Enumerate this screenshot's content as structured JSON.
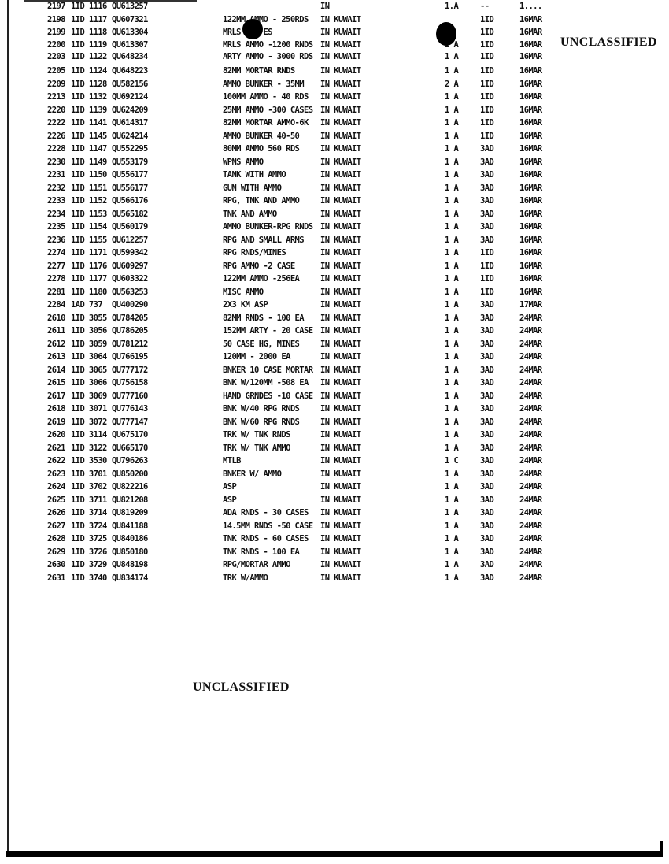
{
  "classification": {
    "top": "UNCLASSIFIED",
    "bottom": "UNCLASSIFIED"
  },
  "rows": [
    {
      "num": "2197",
      "unit": "1ID 1116",
      "grid": "QU613257",
      "desc": "",
      "loc": "IN",
      "qty": "1.A",
      "unit2": "--",
      "date": "1...."
    },
    {
      "num": "2198",
      "unit": "1ID 1117",
      "grid": "QU607321",
      "desc": "122MM AMMO - 250RDS",
      "loc": "IN KUWAIT",
      "qty": "",
      "unit2": "1ID",
      "date": "16MAR"
    },
    {
      "num": "2199",
      "unit": "1ID 1118",
      "grid": "QU613304",
      "desc": "MRLS     ES",
      "loc": "IN KUWAIT",
      "qty": "",
      "unit2": "1ID",
      "date": "16MAR"
    },
    {
      "num": "2200",
      "unit": "1ID 1119",
      "grid": "QU613307",
      "desc": "MRLS AMMO -1200 RNDS",
      "loc": "IN KUWAIT",
      "qty": "1 A",
      "unit2": "1ID",
      "date": "16MAR"
    },
    {
      "num": "2203",
      "unit": "1ID 1122",
      "grid": "QU648234",
      "desc": "ARTY AMMO - 3000 RDS",
      "loc": "IN KUWAIT",
      "qty": "1 A",
      "unit2": "1ID",
      "date": "16MAR"
    },
    {
      "num": "2205",
      "unit": "1ID 1124",
      "grid": "QU648223",
      "desc": "82MM MORTAR RNDS",
      "loc": "IN KUWAIT",
      "qty": "1 A",
      "unit2": "1ID",
      "date": "16MAR"
    },
    {
      "num": "2209",
      "unit": "1ID 1128",
      "grid": "QU582156",
      "desc": "AMMO BUNKER - 35MM",
      "loc": "IN KUWAIT",
      "qty": "2 A",
      "unit2": "1ID",
      "date": "16MAR"
    },
    {
      "num": "2213",
      "unit": "1ID 1132",
      "grid": "QU692124",
      "desc": "100MM AMMO - 40 RDS",
      "loc": "IN KUWAIT",
      "qty": "1 A",
      "unit2": "1ID",
      "date": "16MAR"
    },
    {
      "num": "2220",
      "unit": "1ID 1139",
      "grid": "QU624209",
      "desc": "25MM AMMO -300 CASES",
      "loc": "IN KUWAIT",
      "qty": "1 A",
      "unit2": "1ID",
      "date": "16MAR"
    },
    {
      "num": "2222",
      "unit": "1ID 1141",
      "grid": "QU614317",
      "desc": "82MM MORTAR AMMO-6K",
      "loc": "IN KUWAIT",
      "qty": "1 A",
      "unit2": "1ID",
      "date": "16MAR"
    },
    {
      "num": "2226",
      "unit": "1ID 1145",
      "grid": "QU624214",
      "desc": "AMMO BUNKER 40-50",
      "loc": "IN KUWAIT",
      "qty": "1 A",
      "unit2": "1ID",
      "date": "16MAR"
    },
    {
      "num": "2228",
      "unit": "1ID 1147",
      "grid": "QU552295",
      "desc": "80MM AMMO 560 RDS",
      "loc": "IN KUWAIT",
      "qty": "1 A",
      "unit2": "3AD",
      "date": "16MAR"
    },
    {
      "num": "2230",
      "unit": "1ID 1149",
      "grid": "QU553179",
      "desc": "WPNS AMMO",
      "loc": "IN KUWAIT",
      "qty": "1 A",
      "unit2": "3AD",
      "date": "16MAR"
    },
    {
      "num": "2231",
      "unit": "1ID 1150",
      "grid": "QU556177",
      "desc": "TANK WITH AMMO",
      "loc": "IN KUWAIT",
      "qty": "1 A",
      "unit2": "3AD",
      "date": "16MAR"
    },
    {
      "num": "2232",
      "unit": "1ID 1151",
      "grid": "QU556177",
      "desc": "GUN WITH AMMO",
      "loc": "IN KUWAIT",
      "qty": "1 A",
      "unit2": "3AD",
      "date": "16MAR"
    },
    {
      "num": "2233",
      "unit": "1ID 1152",
      "grid": "QU566176",
      "desc": "RPG, TNK AND AMMO",
      "loc": "IN KUWAIT",
      "qty": "1 A",
      "unit2": "3AD",
      "date": "16MAR"
    },
    {
      "num": "2234",
      "unit": "1ID 1153",
      "grid": "QU565182",
      "desc": "TNK AND AMMO",
      "loc": "IN KUWAIT",
      "qty": "1 A",
      "unit2": "3AD",
      "date": "16MAR"
    },
    {
      "num": "2235",
      "unit": "1ID 1154",
      "grid": "QU560179",
      "desc": "AMMO BUNKER-RPG RNDS",
      "loc": "IN KUWAIT",
      "qty": "1 A",
      "unit2": "3AD",
      "date": "16MAR"
    },
    {
      "num": "2236",
      "unit": "1ID 1155",
      "grid": "QU612257",
      "desc": "RPG AND SMALL ARMS",
      "loc": "IN KUWAIT",
      "qty": "1 A",
      "unit2": "3AD",
      "date": "16MAR"
    },
    {
      "num": "2274",
      "unit": "1ID 1171",
      "grid": "QU599342",
      "desc": "RPG RNDS/MINES",
      "loc": "IN KUWAIT",
      "qty": "1 A",
      "unit2": "1ID",
      "date": "16MAR"
    },
    {
      "num": "2277",
      "unit": "1ID 1176",
      "grid": "QU609297",
      "desc": "RPG AMMO -2 CASE",
      "loc": "IN KUWAIT",
      "qty": "1 A",
      "unit2": "1ID",
      "date": "16MAR"
    },
    {
      "num": "2278",
      "unit": "1ID 1177",
      "grid": "QU603322",
      "desc": "122MM AMMO -256EA",
      "loc": "IN KUWAIT",
      "qty": "1 A",
      "unit2": "1ID",
      "date": "16MAR"
    },
    {
      "num": "2281",
      "unit": "1ID 1180",
      "grid": "QU563253",
      "desc": "MISC AMMO",
      "loc": "IN KUWAIT",
      "qty": "1 A",
      "unit2": "1ID",
      "date": "16MAR"
    },
    {
      "num": "2284",
      "unit": "1AD 737",
      "grid": "QU400290",
      "desc": "2X3 KM ASP",
      "loc": "IN KUWAIT",
      "qty": "1 A",
      "unit2": "3AD",
      "date": "17MAR"
    },
    {
      "num": "2610",
      "unit": "1ID 3055",
      "grid": "QU784205",
      "desc": "82MM RNDS - 100 EA",
      "loc": "IN KUWAIT",
      "qty": "1 A",
      "unit2": "3AD",
      "date": "24MAR"
    },
    {
      "num": "2611",
      "unit": "1ID 3056",
      "grid": "QU786205",
      "desc": "152MM ARTY - 20 CASE",
      "loc": "IN KUWAIT",
      "qty": "1 A",
      "unit2": "3AD",
      "date": "24MAR"
    },
    {
      "num": "2612",
      "unit": "1ID 3059",
      "grid": "QU781212",
      "desc": "50 CASE HG, MINES",
      "loc": "IN KUWAIT",
      "qty": "1 A",
      "unit2": "3AD",
      "date": "24MAR"
    },
    {
      "num": "2613",
      "unit": "1ID 3064",
      "grid": "QU766195",
      "desc": "120MM - 2000 EA",
      "loc": "IN KUWAIT",
      "qty": "1 A",
      "unit2": "3AD",
      "date": "24MAR"
    },
    {
      "num": "2614",
      "unit": "1ID 3065",
      "grid": "QU777172",
      "desc": "BNKER 10 CASE MORTAR",
      "loc": "IN KUWAIT",
      "qty": "1 A",
      "unit2": "3AD",
      "date": "24MAR"
    },
    {
      "num": "2615",
      "unit": "1ID 3066",
      "grid": "QU756158",
      "desc": "BNK W/120MM -508 EA",
      "loc": "IN KUWAIT",
      "qty": "1 A",
      "unit2": "3AD",
      "date": "24MAR"
    },
    {
      "num": "2617",
      "unit": "1ID 3069",
      "grid": "QU777160",
      "desc": "HAND GRNDES -10 CASE",
      "loc": "IN KUWAIT",
      "qty": "1 A",
      "unit2": "3AD",
      "date": "24MAR"
    },
    {
      "num": "2618",
      "unit": "1ID 3071",
      "grid": "QU776143",
      "desc": "BNK W/40 RPG RNDS",
      "loc": "IN KUWAIT",
      "qty": "1 A",
      "unit2": "3AD",
      "date": "24MAR"
    },
    {
      "num": "2619",
      "unit": "1ID 3072",
      "grid": "QU777147",
      "desc": "BNK W/60 RPG RNDS",
      "loc": "IN KUWAIT",
      "qty": "1 A",
      "unit2": "3AD",
      "date": "24MAR"
    },
    {
      "num": "2620",
      "unit": "1ID 3114",
      "grid": "QU675170",
      "desc": "TRK W/ TNK RNDS",
      "loc": "IN KUWAIT",
      "qty": "1 A",
      "unit2": "3AD",
      "date": "24MAR"
    },
    {
      "num": "2621",
      "unit": "1ID 3122",
      "grid": "QU665170",
      "desc": "TRK W/ TNK AMMO",
      "loc": "IN KUWAIT",
      "qty": "1 A",
      "unit2": "3AD",
      "date": "24MAR"
    },
    {
      "num": "2622",
      "unit": "1ID 3530",
      "grid": "QU796263",
      "desc": "MTLB",
      "loc": "IN KUWAIT",
      "qty": "1 C",
      "unit2": "3AD",
      "date": "24MAR"
    },
    {
      "num": "2623",
      "unit": "1ID 3701",
      "grid": "QU850200",
      "desc": "BNKER W/ AMMO",
      "loc": "IN KUWAIT",
      "qty": "1 A",
      "unit2": "3AD",
      "date": "24MAR"
    },
    {
      "num": "2624",
      "unit": "1ID 3702",
      "grid": "QU822216",
      "desc": "ASP",
      "loc": "IN KUWAIT",
      "qty": "1 A",
      "unit2": "3AD",
      "date": "24MAR"
    },
    {
      "num": "2625",
      "unit": "1ID 3711",
      "grid": "QU821208",
      "desc": "ASP",
      "loc": "IN KUWAIT",
      "qty": "1 A",
      "unit2": "3AD",
      "date": "24MAR"
    },
    {
      "num": "2626",
      "unit": "1ID 3714",
      "grid": "QU819209",
      "desc": "ADA RNDS - 30 CASES",
      "loc": "IN KUWAIT",
      "qty": "1 A",
      "unit2": "3AD",
      "date": "24MAR"
    },
    {
      "num": "2627",
      "unit": "1ID 3724",
      "grid": "QU841188",
      "desc": "14.5MM RNDS -50 CASE",
      "loc": "IN KUWAIT",
      "qty": "1 A",
      "unit2": "3AD",
      "date": "24MAR"
    },
    {
      "num": "2628",
      "unit": "1ID 3725",
      "grid": "QU840186",
      "desc": "TNK RNDS - 60 CASES",
      "loc": "IN KUWAIT",
      "qty": "1 A",
      "unit2": "3AD",
      "date": "24MAR"
    },
    {
      "num": "2629",
      "unit": "1ID 3726",
      "grid": "QU850180",
      "desc": "TNK RNDS - 100 EA",
      "loc": "IN KUWAIT",
      "qty": "1 A",
      "unit2": "3AD",
      "date": "24MAR"
    },
    {
      "num": "2630",
      "unit": "1ID 3729",
      "grid": "QU848198",
      "desc": "RPG/MORTAR AMMO",
      "loc": "IN KUWAIT",
      "qty": "1 A",
      "unit2": "3AD",
      "date": "24MAR"
    },
    {
      "num": "2631",
      "unit": "1ID 3740",
      "grid": "QU834174",
      "desc": "TRK W/AMMO",
      "loc": "IN KUWAIT",
      "qty": "1 A",
      "unit2": "3AD",
      "date": "24MAR"
    }
  ]
}
